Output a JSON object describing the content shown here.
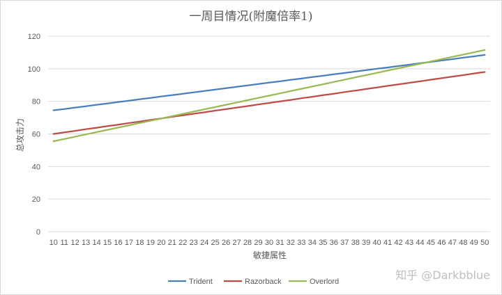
{
  "chart_data": {
    "type": "line",
    "title": "一周目情况(附魔倍率1)",
    "xlabel": "敏捷属性",
    "ylabel": "总攻击力",
    "ylim": [
      0,
      120
    ],
    "yticks": [
      0,
      20,
      40,
      60,
      80,
      100,
      120
    ],
    "x": [
      10,
      11,
      12,
      13,
      14,
      15,
      16,
      17,
      18,
      19,
      20,
      21,
      22,
      23,
      24,
      25,
      26,
      27,
      28,
      29,
      30,
      31,
      32,
      33,
      34,
      35,
      36,
      37,
      38,
      39,
      40,
      41,
      42,
      43,
      44,
      45,
      46,
      47,
      48,
      49,
      50
    ],
    "grid": true,
    "legend_position": "bottom",
    "series": [
      {
        "name": "Trident",
        "color": "#4a7ebb",
        "values": [
          74.5,
          75.3,
          76.2,
          77.0,
          77.9,
          78.7,
          79.6,
          80.4,
          81.3,
          82.1,
          83.0,
          83.8,
          84.7,
          85.5,
          86.4,
          87.2,
          88.1,
          88.9,
          89.8,
          90.6,
          91.5,
          92.3,
          93.2,
          94.0,
          94.9,
          95.7,
          96.6,
          97.4,
          98.3,
          99.1,
          100.0,
          100.8,
          101.7,
          102.5,
          103.4,
          104.2,
          105.1,
          105.9,
          106.8,
          107.6,
          108.5
        ]
      },
      {
        "name": "Razorback",
        "color": "#be4b48",
        "values": [
          60.0,
          61.0,
          61.9,
          62.9,
          63.8,
          64.8,
          65.7,
          66.7,
          67.6,
          68.6,
          69.5,
          70.5,
          71.4,
          72.4,
          73.3,
          74.3,
          75.2,
          76.2,
          77.1,
          78.1,
          79.0,
          80.0,
          80.9,
          81.9,
          82.8,
          83.8,
          84.7,
          85.7,
          86.6,
          87.6,
          88.5,
          89.5,
          90.4,
          91.4,
          92.3,
          93.3,
          94.2,
          95.2,
          96.1,
          97.1,
          98.0
        ]
      },
      {
        "name": "Overlord",
        "color": "#98b954",
        "values": [
          55.5,
          56.9,
          58.3,
          59.7,
          61.1,
          62.5,
          63.9,
          65.3,
          66.7,
          68.1,
          69.5,
          70.9,
          72.3,
          73.7,
          75.1,
          76.5,
          77.9,
          79.3,
          80.7,
          82.1,
          83.5,
          84.9,
          86.3,
          87.7,
          89.1,
          90.5,
          91.9,
          93.3,
          94.7,
          96.1,
          97.5,
          98.9,
          100.3,
          101.7,
          103.1,
          104.5,
          105.9,
          107.3,
          108.7,
          110.1,
          111.5
        ]
      }
    ]
  },
  "watermark": "知乎 @Darkbblue"
}
